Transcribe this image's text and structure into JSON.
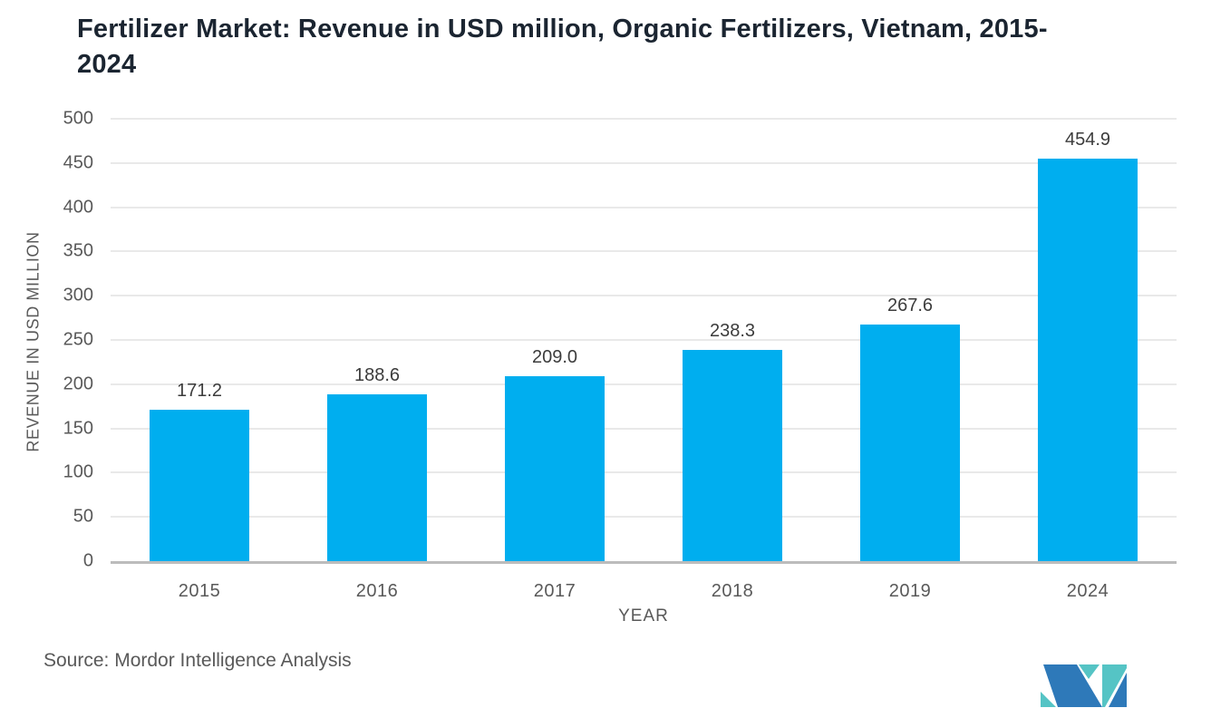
{
  "title": {
    "line1": "Fertilizer Market: Revenue in USD million, Organic Fertilizers, Vietnam, 2015-",
    "line2": "2024"
  },
  "chart_data": {
    "type": "bar",
    "title": "Fertilizer Market: Revenue in USD million, Organic Fertilizers, Vietnam, 2015-2024",
    "categories": [
      "2015",
      "2016",
      "2017",
      "2018",
      "2019",
      "2024"
    ],
    "values": [
      171.2,
      188.6,
      209.0,
      238.3,
      267.6,
      454.9
    ],
    "value_labels": [
      "171.2",
      "188.6",
      "209.0",
      "238.3",
      "267.6",
      "454.9"
    ],
    "xlabel": "YEAR",
    "ylabel": "REVENUE IN USD MILLION",
    "ylim": [
      0,
      500
    ],
    "ytick_step": 50,
    "grid": true,
    "legend": "none",
    "bar_color": "#00AEEF"
  },
  "source_text": "Source: Mordor Intelligence Analysis",
  "logo": {
    "name": "mordor-intelligence-logo",
    "teal": "#55C4C5",
    "blue": "#2E79B9"
  },
  "colors": {
    "background": "#FFFFFF",
    "title_text": "#1B2531",
    "axis_text": "#595959",
    "data_label_text": "#3C3C3C",
    "gridline": "#E9E9E9",
    "axis_line": "#BCBCBC"
  }
}
